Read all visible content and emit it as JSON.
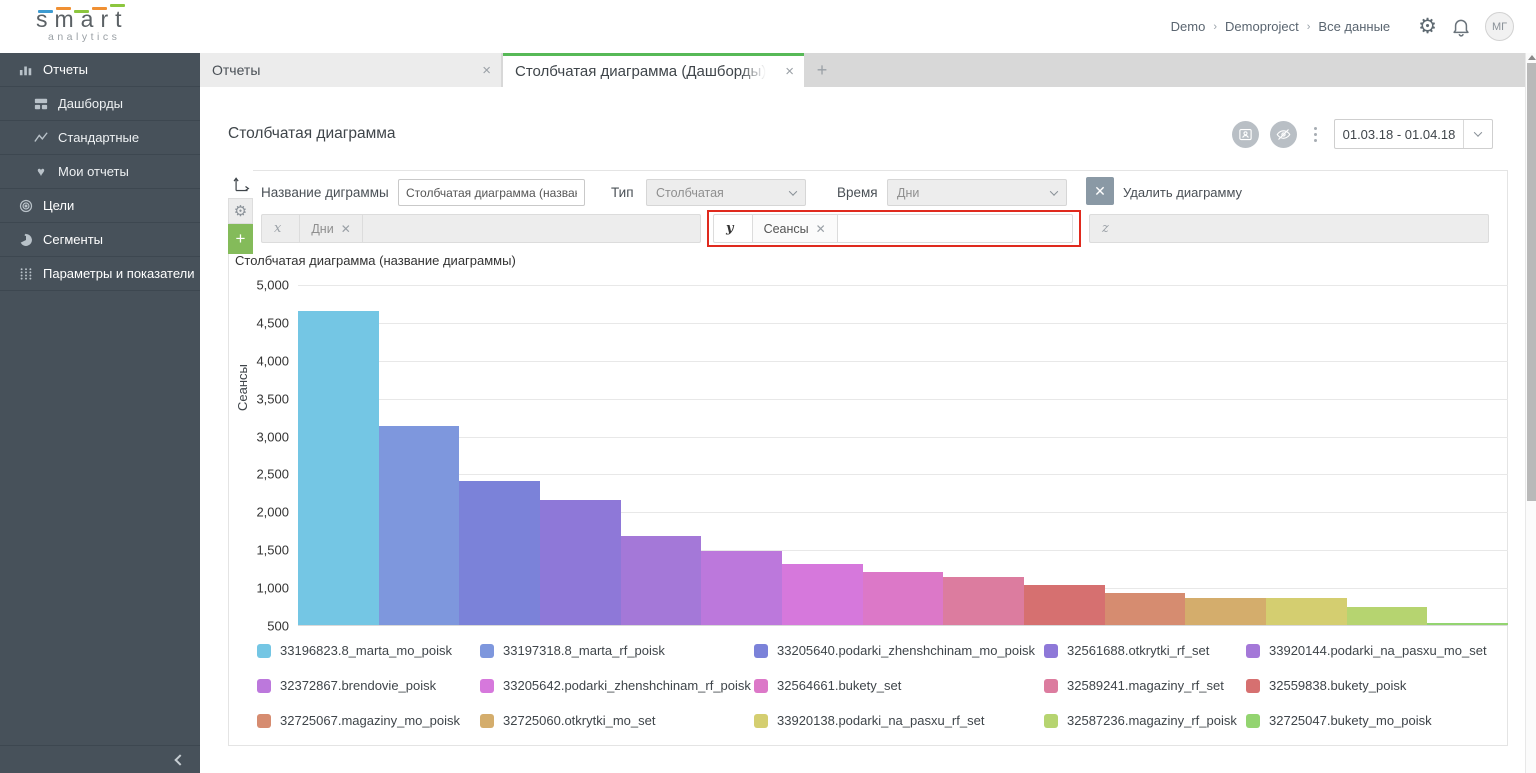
{
  "colors": {
    "accent_green": "#57b957",
    "highlight_red": "#e02a1e",
    "add_button_green": "#84bb5a",
    "delete_button_slate": "#8a99a5",
    "sidebar_bg": "#47515a"
  },
  "header": {
    "logo_word": "smart",
    "logo_sub": "analytics",
    "breadcrumb": [
      "Demo",
      "Demoproject",
      "Все данные"
    ],
    "avatar_initials": "МГ"
  },
  "sidebar": {
    "items": [
      {
        "id": "reports",
        "label": "Отчеты",
        "icon": "bar-chart-icon",
        "level": 0
      },
      {
        "id": "dashboards",
        "label": "Дашборды",
        "icon": "dashboard-icon",
        "level": 1
      },
      {
        "id": "standard",
        "label": "Стандартные",
        "icon": "line-chart-icon",
        "level": 1
      },
      {
        "id": "my-reports",
        "label": "Мои отчеты",
        "icon": "heart-icon",
        "level": 1
      },
      {
        "id": "goals",
        "label": "Цели",
        "icon": "target-icon",
        "level": 0
      },
      {
        "id": "segments",
        "label": "Сегменты",
        "icon": "pie-chart-icon",
        "level": 0
      },
      {
        "id": "params",
        "label": "Параметры и показатели",
        "icon": "params-icon",
        "level": 0
      }
    ]
  },
  "tabs": {
    "items": [
      {
        "id": "reports",
        "label": "Отчеты",
        "active": false
      },
      {
        "id": "bar-chart-dashboards",
        "label": "Столбчатая диаграмма (Дашборды)",
        "active": true
      }
    ],
    "add_label": "+"
  },
  "toolbar": {
    "page_title": "Столбчатая диаграмма",
    "date_range": "01.03.18 - 01.04.18"
  },
  "config": {
    "name_label": "Название диграммы",
    "name_value": "Столбчатая диаграмма (название диаграммы)",
    "type_label": "Тип",
    "type_value": "Столбчатая",
    "time_label": "Время",
    "time_value": "Дни",
    "delete_label": "Удалить диаграмму",
    "x_label": "x",
    "x_tag": "Дни",
    "y_label": "y",
    "y_tag": "Сеансы",
    "z_label": "z"
  },
  "chart_data": {
    "type": "bar",
    "title": "Столбчатая диаграмма (название диаграммы)",
    "ylabel": "Сеансы",
    "ylim": [
      500,
      5000
    ],
    "ytick_step": 500,
    "yticks": [
      "5,000",
      "4,500",
      "4,000",
      "3,500",
      "3,000",
      "2,500",
      "2,000",
      "1,500",
      "1,000",
      "500"
    ],
    "grid": true,
    "legend_position": "bottom",
    "categories": [
      "33196823.8_marta_mo_poisk",
      "33197318.8_marta_rf_poisk",
      "33205640.podarki_zhenshchinam_mo_poisk",
      "32561688.otkrytki_rf_set",
      "33920144.podarki_na_pasxu_mo_set",
      "32372867.brendovie_poisk",
      "33205642.podarki_zhenshchinam_rf_poisk",
      "32564661.bukety_set",
      "32589241.magaziny_rf_set",
      "32559838.bukety_poisk",
      "32725067.magaziny_mo_poisk",
      "32725060.otkrytki_mo_set",
      "33920138.podarki_na_pasxu_rf_set",
      "32587236.magaziny_rf_poisk",
      "32725047.bukety_mo_poisk"
    ],
    "values": [
      4650,
      3120,
      2400,
      2150,
      1670,
      1480,
      1300,
      1200,
      1140,
      1030,
      920,
      860,
      850,
      740,
      530
    ],
    "bar_colors": [
      "#74c6e4",
      "#7e97dd",
      "#7b82d9",
      "#8e78d8",
      "#a478d8",
      "#bc78dc",
      "#d678dc",
      "#dc78c8",
      "#dc7c9f",
      "#d67070",
      "#d68c70",
      "#d4ad6c",
      "#d4ce70",
      "#b6d470",
      "#93d470"
    ]
  }
}
